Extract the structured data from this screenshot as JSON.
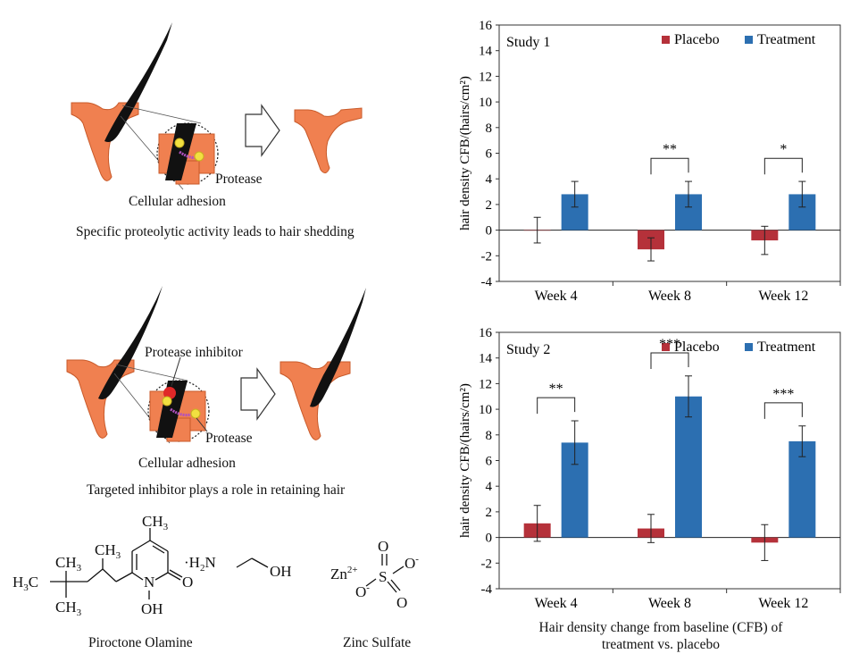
{
  "left": {
    "panel1": {
      "protease_label": "Protease",
      "adhesion_label": "Cellular adhesion",
      "caption": "Specific proteolytic activity leads to hair shedding"
    },
    "panel2": {
      "inhibitor_label": "Protease inhibitor",
      "protease_label": "Protease",
      "adhesion_label": "Cellular adhesion",
      "caption": "Targeted inhibitor plays a role in retaining hair"
    },
    "chemistry": {
      "piroctone_name": "Piroctone Olamine",
      "zinc_name": "Zinc Sulfate",
      "piroctone_atoms": {
        "ch3_top": "CH",
        "ch3_top_sub": "3",
        "ch3_a": "CH",
        "ch3_a_sub": "3",
        "ch3_b": "CH",
        "ch3_b_sub": "3",
        "h3c": "H",
        "h3c_sub": "3",
        "h3c_c": "C",
        "ch3_c": "CH",
        "ch3_c_sub": "3",
        "n": "N",
        "o": "O",
        "oh": "OH",
        "salt_prefix": "·H",
        "salt_sub": "2",
        "salt_n": "N",
        "ethanol_oh": "OH"
      },
      "zinc_atoms": {
        "zn": "Zn",
        "zn_charge": "2+",
        "s": "S",
        "o_top": "O",
        "o_right": "O",
        "o_right_charge": "-",
        "o_left": "O",
        "o_left_charge": "-",
        "o_bottom": "O"
      }
    }
  },
  "chart_data": [
    {
      "type": "bar",
      "title": "Study 1",
      "ylabel": "hair density CFB/(hairs/cm²)",
      "categories": [
        "Week 4",
        "Week 8",
        "Week 12"
      ],
      "ylim": [
        -4,
        16
      ],
      "yticks": [
        -4,
        -2,
        0,
        2,
        4,
        6,
        8,
        10,
        12,
        14,
        16
      ],
      "legend_position": "top-right",
      "series": [
        {
          "name": "Placebo",
          "color": "#b5313a",
          "values": [
            0.0,
            -1.5,
            -0.8
          ],
          "errors": [
            1.0,
            0.9,
            1.1
          ]
        },
        {
          "name": "Treatment",
          "color": "#2c6fb1",
          "values": [
            2.8,
            2.8,
            2.8
          ],
          "errors": [
            1.0,
            1.0,
            1.0
          ]
        }
      ],
      "significance": [
        "",
        "**",
        "*"
      ]
    },
    {
      "type": "bar",
      "title": "Study 2",
      "ylabel": "hair density CFB/(hairs/cm²)",
      "categories": [
        "Week 4",
        "Week 8",
        "Week 12"
      ],
      "ylim": [
        -4,
        16
      ],
      "yticks": [
        -4,
        -2,
        0,
        2,
        4,
        6,
        8,
        10,
        12,
        14,
        16
      ],
      "legend_position": "top-right",
      "series": [
        {
          "name": "Placebo",
          "color": "#b5313a",
          "values": [
            1.1,
            0.7,
            -0.4
          ],
          "errors": [
            1.4,
            1.1,
            1.4
          ]
        },
        {
          "name": "Treatment",
          "color": "#2c6fb1",
          "values": [
            7.4,
            11.0,
            7.5
          ],
          "errors": [
            1.7,
            1.6,
            1.2
          ]
        }
      ],
      "significance": [
        "**",
        "***",
        "***"
      ]
    }
  ],
  "chart_footer": "Hair density change from baseline (CFB) of treatment vs. placebo",
  "chart_footer_line1": "Hair density change from baseline (CFB) of",
  "chart_footer_line2": "treatment vs. placebo"
}
